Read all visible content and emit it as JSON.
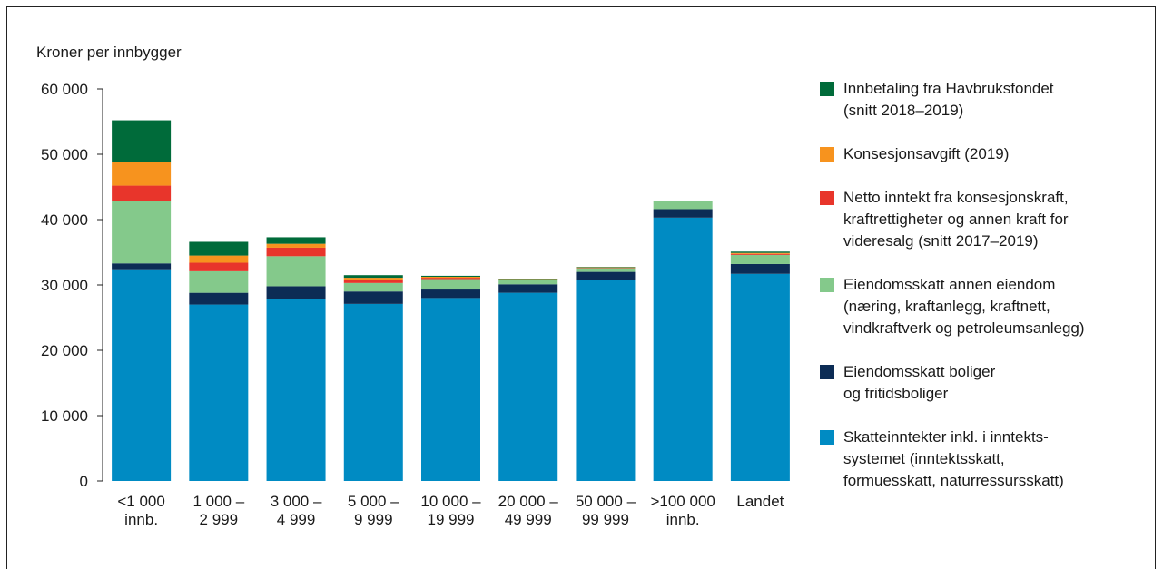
{
  "chart_data": {
    "type": "bar",
    "stacked": true,
    "ylabel": "Kroner per innbygger",
    "xlabel": "",
    "ylim": [
      0,
      60000
    ],
    "yticks": [
      0,
      10000,
      20000,
      30000,
      40000,
      50000,
      60000
    ],
    "ytick_labels": [
      "0",
      "10 000",
      "20 000",
      "30 000",
      "40 000",
      "50 000",
      "60 000"
    ],
    "grid": false,
    "legend_position": "right",
    "categories": [
      "<1 000\ninnb.",
      "1 000 –\n2 999",
      "3 000 –\n4 999",
      "5 000 –\n9 999",
      "10 000 –\n19 999",
      "20 000 –\n49 999",
      "50 000 –\n99 999",
      ">100 000\ninnb.",
      "Landet"
    ],
    "series": [
      {
        "name": "Skatteinntekter inkl. i inntekts-\nsystemet (inntektsskatt,\nformuesskatt, naturressursskatt)",
        "color": "#008bc3",
        "values": [
          32400,
          27000,
          27800,
          27100,
          28000,
          28800,
          30800,
          40300,
          31700
        ]
      },
      {
        "name": "Eiendomsskatt boliger\nog fritidsboliger",
        "color": "#0c2c55",
        "values": [
          900,
          1800,
          2000,
          1900,
          1300,
          1300,
          1200,
          1300,
          1500
        ]
      },
      {
        "name": "Eiendomsskatt annen eiendom\n(næring, kraftanlegg, kraftnett,\nvindkraftverk og petroleumsanlegg)",
        "color": "#84c98b",
        "values": [
          9600,
          3300,
          4600,
          1300,
          1600,
          700,
          600,
          1300,
          1400
        ]
      },
      {
        "name": "Netto inntekt fra konsesjonskraft,\nkraftrettigheter og annen kraft for\nvideresalg (snitt 2017–2019)",
        "color": "#e8352b",
        "values": [
          2300,
          1300,
          1300,
          500,
          200,
          50,
          50,
          0,
          150
        ]
      },
      {
        "name": "Konsesjonsavgift (2019)",
        "color": "#f7931e",
        "values": [
          3600,
          1100,
          600,
          300,
          150,
          50,
          50,
          0,
          150
        ]
      },
      {
        "name": "Innbetaling fra Havbruksfondet\n(snitt 2018–2019)",
        "color": "#006b3a",
        "values": [
          6400,
          2100,
          1000,
          400,
          150,
          50,
          50,
          0,
          200
        ]
      }
    ]
  }
}
